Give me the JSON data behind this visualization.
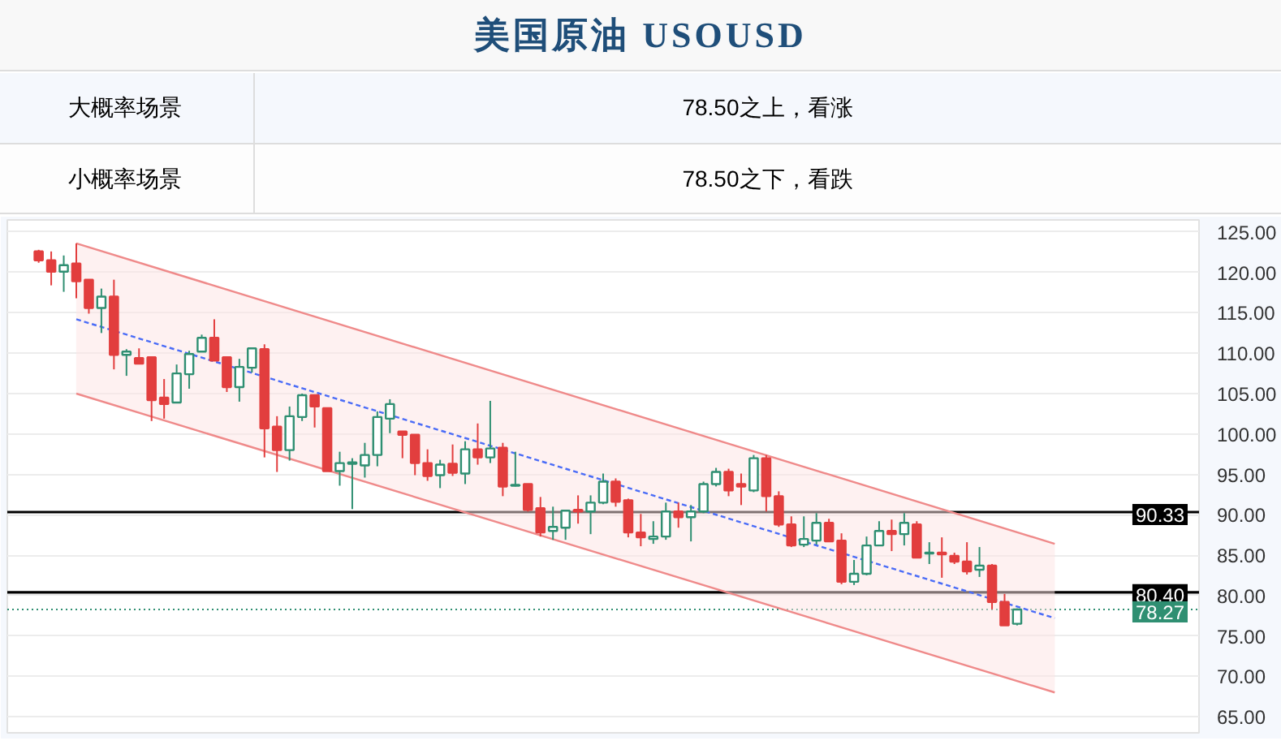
{
  "chart_data": {
    "type": "candlestick",
    "title": "美国原油 USOUSD",
    "annotations": [
      "大概率场景",
      "78.50之上，看涨",
      "小概率场景",
      "78.50之下，看跌"
    ],
    "categories": [
      null,
      null,
      null,
      null,
      null,
      null,
      null,
      null,
      null,
      null,
      null,
      null,
      null,
      null,
      null,
      null,
      null,
      null,
      null,
      null,
      null,
      null,
      null,
      null,
      null,
      null,
      null,
      null,
      null,
      null,
      null,
      null,
      null,
      null,
      null,
      null,
      null,
      null,
      null,
      null,
      null,
      null,
      null,
      null,
      null,
      null,
      null,
      null,
      null,
      null,
      null,
      null,
      null,
      null,
      null,
      null,
      null,
      null,
      null,
      null,
      null,
      null,
      null,
      null,
      null,
      null,
      null,
      null,
      null,
      null,
      null,
      null,
      null,
      null,
      null,
      null,
      null,
      null,
      null,
      null,
      null,
      null,
      null,
      null,
      null,
      null,
      null,
      null,
      null,
      null,
      null,
      null,
      null,
      null,
      null
    ],
    "ohlc": [
      null,
      null,
      [
        122.6,
        122.8,
        121.2,
        121.5
      ],
      [
        121.5,
        122.6,
        118.4,
        120.1
      ],
      [
        120.1,
        122.1,
        117.6,
        120.9
      ],
      [
        121.1,
        123.6,
        116.8,
        118.9
      ],
      [
        119.1,
        119.1,
        114.9,
        115.6
      ],
      [
        115.6,
        118.0,
        112.5,
        117.0
      ],
      [
        117.0,
        119.1,
        108.0,
        109.8
      ],
      [
        109.8,
        110.5,
        107.2,
        110.2
      ],
      [
        109.4,
        110.6,
        108.7,
        108.7
      ],
      [
        109.5,
        109.5,
        101.6,
        104.2
      ],
      [
        104.5,
        106.8,
        101.9,
        103.7
      ],
      [
        103.9,
        108.6,
        103.9,
        107.5
      ],
      [
        107.4,
        110.3,
        105.6,
        109.9
      ],
      [
        110.2,
        112.3,
        110.2,
        111.9
      ],
      [
        111.9,
        114.2,
        109.1,
        109.1
      ],
      [
        109.5,
        109.5,
        105.2,
        105.8
      ],
      [
        105.8,
        109.3,
        104.0,
        108.3
      ],
      [
        108.2,
        110.6,
        107.6,
        110.6
      ],
      [
        110.5,
        111.1,
        97.1,
        100.7
      ],
      [
        100.9,
        102.2,
        95.3,
        98.0
      ],
      [
        98.0,
        103.4,
        96.7,
        102.2
      ],
      [
        102.1,
        105.0,
        101.6,
        104.8
      ],
      [
        104.8,
        104.8,
        100.8,
        103.4
      ],
      [
        103.2,
        103.2,
        95.4,
        95.4
      ],
      [
        95.4,
        97.8,
        93.6,
        96.4
      ],
      [
        96.3,
        97.0,
        90.7,
        96.5
      ],
      [
        96.1,
        98.9,
        94.6,
        97.4
      ],
      [
        97.4,
        102.8,
        96.0,
        102.1
      ],
      [
        101.9,
        104.3,
        100.1,
        103.7
      ],
      [
        100.3,
        100.3,
        97.0,
        99.9
      ],
      [
        99.9,
        99.9,
        94.9,
        96.4
      ],
      [
        96.4,
        98.1,
        94.2,
        94.8
      ],
      [
        94.9,
        96.8,
        93.3,
        96.2
      ],
      [
        96.3,
        98.7,
        94.8,
        95.2
      ],
      [
        95.1,
        99.1,
        93.8,
        98.1
      ],
      [
        98.1,
        101.3,
        96.2,
        97.1
      ],
      [
        97.1,
        104.1,
        96.4,
        98.2
      ],
      [
        98.3,
        98.9,
        92.3,
        93.5
      ],
      [
        93.6,
        97.8,
        93.5,
        93.7
      ],
      [
        93.8,
        93.8,
        90.4,
        90.6
      ],
      [
        90.8,
        92.2,
        87.3,
        87.8
      ],
      [
        88.0,
        91.0,
        86.9,
        88.5
      ],
      [
        88.4,
        90.5,
        86.9,
        90.5
      ],
      [
        90.6,
        92.4,
        88.9,
        90.4
      ],
      [
        90.4,
        92.4,
        87.6,
        91.5
      ],
      [
        91.5,
        95.1,
        91.3,
        94.1
      ],
      [
        94.1,
        94.5,
        91.0,
        91.6
      ],
      [
        91.8,
        92.0,
        87.2,
        87.8
      ],
      [
        87.8,
        90.1,
        86.1,
        87.2
      ],
      [
        87.0,
        89.2,
        86.4,
        87.3
      ],
      [
        87.3,
        91.5,
        86.9,
        90.4
      ],
      [
        90.4,
        91.5,
        88.4,
        89.7
      ],
      [
        89.7,
        91.2,
        86.7,
        90.4
      ],
      [
        90.4,
        94.1,
        90.2,
        93.8
      ],
      [
        93.8,
        95.8,
        93.5,
        95.3
      ],
      [
        95.3,
        95.7,
        92.3,
        93.0
      ],
      [
        93.8,
        95.1,
        91.2,
        93.5
      ],
      [
        93.0,
        97.4,
        92.8,
        97.0
      ],
      [
        97.0,
        97.4,
        90.4,
        92.3
      ],
      [
        92.3,
        92.9,
        88.5,
        88.8
      ],
      [
        88.8,
        89.8,
        86.0,
        86.2
      ],
      [
        86.3,
        89.8,
        86.0,
        87.0
      ],
      [
        86.8,
        90.2,
        86.3,
        89.0
      ],
      [
        89.0,
        89.5,
        86.7,
        86.7
      ],
      [
        86.8,
        87.7,
        81.4,
        81.7
      ],
      [
        81.7,
        84.4,
        81.3,
        82.7
      ],
      [
        82.7,
        87.3,
        82.5,
        86.2
      ],
      [
        86.2,
        89.2,
        86.2,
        88.0
      ],
      [
        88.0,
        89.4,
        85.5,
        87.6
      ],
      [
        87.6,
        90.2,
        86.2,
        89.0
      ],
      [
        88.8,
        89.2,
        84.6,
        84.7
      ],
      [
        85.2,
        86.6,
        83.9,
        85.3
      ],
      [
        85.3,
        87.2,
        82.2,
        85.1
      ],
      [
        84.9,
        85.3,
        83.9,
        84.2
      ],
      [
        84.2,
        86.6,
        82.6,
        83.0
      ],
      [
        83.2,
        86.0,
        82.3,
        83.7
      ],
      [
        83.7,
        83.9,
        78.3,
        79.2
      ],
      [
        79.2,
        80.2,
        76.3,
        76.3
      ],
      [
        76.5,
        78.4,
        76.3,
        78.27
      ],
      null,
      null,
      null,
      null,
      null,
      null,
      null,
      null,
      null,
      null,
      null,
      null,
      null,
      null
    ],
    "colors": [
      null,
      null,
      "#e23e3e",
      "#e23e3e",
      "#2f8f72",
      "#e23e3e",
      "#e23e3e",
      "#2f8f72",
      "#e23e3e",
      "#2f8f72",
      "#e23e3e",
      "#e23e3e",
      "#e23e3e",
      "#2f8f72",
      "#2f8f72",
      "#2f8f72",
      "#e23e3e",
      "#e23e3e",
      "#2f8f72",
      "#2f8f72",
      "#e23e3e",
      "#e23e3e",
      "#2f8f72",
      "#2f8f72",
      "#e23e3e",
      "#e23e3e",
      "#2f8f72",
      "#2f8f72",
      "#2f8f72",
      "#2f8f72",
      "#2f8f72",
      "#e23e3e",
      "#e23e3e",
      "#e23e3e",
      "#2f8f72",
      "#e23e3e",
      "#2f8f72",
      "#e23e3e",
      "#2f8f72",
      "#e23e3e",
      "#2f8f72",
      "#e23e3e",
      "#e23e3e",
      "#2f8f72",
      "#2f8f72",
      "#e23e3e",
      "#2f8f72",
      "#2f8f72",
      "#e23e3e",
      "#e23e3e",
      "#e23e3e",
      "#2f8f72",
      "#2f8f72",
      "#e23e3e",
      "#2f8f72",
      "#2f8f72",
      "#2f8f72",
      "#e23e3e",
      "#e23e3e",
      "#2f8f72",
      "#e23e3e",
      "#e23e3e",
      "#e23e3e",
      "#2f8f72",
      "#2f8f72",
      "#e23e3e",
      "#e23e3e",
      "#2f8f72",
      "#2f8f72",
      "#2f8f72",
      "#e23e3e",
      "#2f8f72",
      "#e23e3e",
      "#2f8f72",
      "#e23e3e",
      "#e23e3e",
      "#e23e3e",
      "#2f8f72",
      "#e23e3e",
      "#e23e3e",
      "#2f8f72",
      null,
      null,
      null,
      null,
      null,
      null,
      null,
      null,
      null,
      null,
      null,
      null,
      null,
      null
    ],
    "series": [
      {
        "type": "line",
        "color": "#4a6cf7",
        "line_style": "dashed",
        "values": [
          null,
          null,
          null,
          null,
          null,
          114.2,
          null,
          null,
          null,
          null,
          null,
          null,
          null,
          null,
          null,
          null,
          null,
          null,
          null,
          null,
          null,
          null,
          null,
          null,
          null,
          null,
          null,
          null,
          null,
          null,
          null,
          null,
          null,
          null,
          null,
          null,
          null,
          null,
          null,
          null,
          null,
          null,
          null,
          null,
          null,
          null,
          null,
          null,
          null,
          null,
          null,
          null,
          null,
          null,
          null,
          null,
          null,
          null,
          null,
          null,
          null,
          null,
          null,
          null,
          null,
          null,
          null,
          null,
          null,
          null,
          null,
          null,
          null,
          null,
          null,
          null,
          null,
          null,
          null,
          null,
          null,
          null,
          null,
          77.2,
          null,
          null,
          null,
          null,
          null,
          null,
          null,
          null,
          null,
          null,
          null
        ],
        "lower": [
          null,
          null,
          null,
          null,
          null,
          105.0,
          null,
          null,
          null,
          null,
          null,
          null,
          null,
          null,
          null,
          null,
          null,
          null,
          null,
          null,
          null,
          null,
          null,
          null,
          null,
          null,
          null,
          null,
          null,
          null,
          null,
          null,
          null,
          null,
          null,
          null,
          null,
          null,
          null,
          null,
          null,
          null,
          null,
          null,
          null,
          null,
          null,
          null,
          null,
          null,
          null,
          null,
          null,
          null,
          null,
          null,
          null,
          null,
          null,
          null,
          null,
          null,
          null,
          null,
          null,
          null,
          null,
          null,
          null,
          null,
          null,
          null,
          null,
          null,
          null,
          null,
          null,
          null,
          null,
          null,
          null,
          null,
          null,
          68.0,
          null,
          null,
          null,
          null,
          null,
          null,
          null,
          null,
          null,
          null,
          null
        ],
        "upper": [
          null,
          null,
          null,
          null,
          null,
          123.6,
          null,
          null,
          null,
          null,
          null,
          null,
          null,
          null,
          null,
          null,
          null,
          null,
          null,
          null,
          null,
          null,
          null,
          null,
          null,
          null,
          null,
          null,
          null,
          null,
          null,
          null,
          null,
          null,
          null,
          null,
          null,
          null,
          null,
          null,
          null,
          null,
          null,
          null,
          null,
          null,
          null,
          null,
          null,
          null,
          null,
          null,
          null,
          null,
          null,
          null,
          null,
          null,
          null,
          null,
          null,
          null,
          null,
          null,
          null,
          null,
          null,
          null,
          null,
          null,
          null,
          null,
          null,
          null,
          null,
          null,
          null,
          null,
          null,
          null,
          null,
          null,
          null,
          86.4,
          null,
          null,
          null,
          null,
          null,
          null,
          null,
          null,
          null,
          null,
          null
        ]
      },
      {
        "type": "line",
        "color": "#ef8a8a",
        "line_style": "solid",
        "values": [
          null,
          null,
          null,
          null,
          null,
          123.6,
          null,
          null,
          null,
          null,
          null,
          null,
          null,
          null,
          null,
          null,
          null,
          null,
          null,
          null,
          null,
          null,
          null,
          null,
          null,
          null,
          null,
          null,
          null,
          null,
          null,
          null,
          null,
          null,
          null,
          null,
          null,
          null,
          null,
          null,
          null,
          null,
          null,
          null,
          null,
          null,
          null,
          null,
          null,
          null,
          null,
          null,
          null,
          null,
          null,
          null,
          null,
          null,
          null,
          null,
          null,
          null,
          null,
          null,
          null,
          null,
          null,
          null,
          null,
          null,
          null,
          null,
          null,
          null,
          null,
          null,
          null,
          null,
          null,
          null,
          null,
          null,
          null,
          86.4,
          null,
          null,
          null,
          null,
          null,
          null,
          null,
          null,
          null,
          null,
          null
        ]
      },
      {
        "type": "line",
        "color": "#ef8a8a",
        "line_style": "solid",
        "values": [
          null,
          null,
          null,
          null,
          null,
          105.0,
          null,
          null,
          null,
          null,
          null,
          null,
          null,
          null,
          null,
          null,
          null,
          null,
          null,
          null,
          null,
          null,
          null,
          null,
          null,
          null,
          null,
          null,
          null,
          null,
          null,
          null,
          null,
          null,
          null,
          null,
          null,
          null,
          null,
          null,
          null,
          null,
          null,
          null,
          null,
          null,
          null,
          null,
          null,
          null,
          null,
          null,
          null,
          null,
          null,
          null,
          null,
          null,
          null,
          null,
          null,
          null,
          null,
          null,
          null,
          null,
          null,
          null,
          null,
          null,
          null,
          null,
          null,
          null,
          null,
          null,
          null,
          null,
          null,
          null,
          null,
          null,
          null,
          68.0,
          null,
          null,
          null,
          null,
          null,
          null,
          null,
          null,
          null,
          null,
          null
        ]
      }
    ],
    "ref_lines": [
      {
        "axis": "y",
        "value": 90.33,
        "label": "90.33",
        "color": "#000000",
        "line_style": "solid"
      },
      {
        "axis": "y",
        "value": 80.4,
        "label": "80.40",
        "color": "#000000",
        "line_style": "solid"
      },
      {
        "axis": "y",
        "value": 78.27,
        "label": "78.27",
        "color": "#2f8f72",
        "line_style": "dotted"
      }
    ],
    "ylim": [
      63,
      126.5
    ],
    "yticks": [
      {
        "value": 65,
        "label": "65.00"
      },
      {
        "value": 70,
        "label": "70.00"
      },
      {
        "value": 75,
        "label": "75.00"
      },
      {
        "value": 80,
        "label": "80.00"
      },
      {
        "value": 85,
        "label": "85.00"
      },
      {
        "value": 90,
        "label": "90.00"
      },
      {
        "value": 95,
        "label": "95.00"
      },
      {
        "value": 100,
        "label": "100.00"
      },
      {
        "value": 105,
        "label": "105.00"
      },
      {
        "value": 110,
        "label": "110.00"
      },
      {
        "value": 115,
        "label": "115.00"
      },
      {
        "value": 120,
        "label": "120.00"
      },
      {
        "value": 125,
        "label": "125.00"
      }
    ],
    "grid": "y",
    "tick_labels": "y"
  }
}
